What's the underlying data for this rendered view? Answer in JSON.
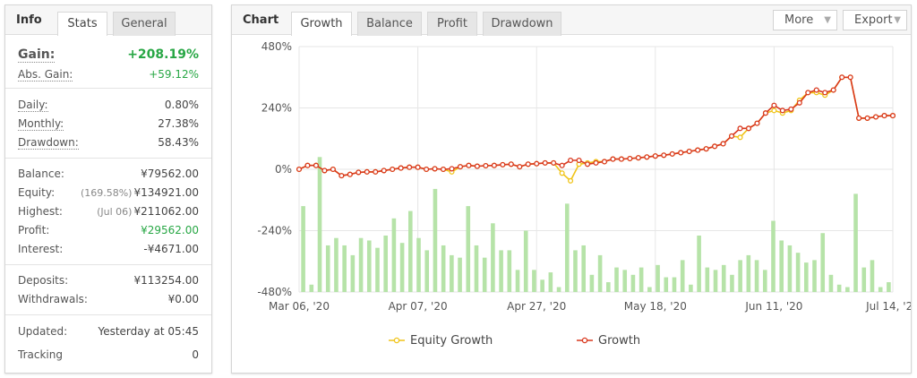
{
  "info": {
    "tabs": [
      {
        "label": "Info"
      },
      {
        "label": "Stats"
      },
      {
        "label": "General"
      }
    ],
    "gain": {
      "label": "Gain:",
      "value": "+208.19%"
    },
    "abs_gain": {
      "label": "Abs. Gain:",
      "value": "+59.12%"
    },
    "daily": {
      "label": "Daily:",
      "value": "0.80%"
    },
    "monthly": {
      "label": "Monthly:",
      "value": "27.38%"
    },
    "drawdown": {
      "label": "Drawdown:",
      "value": "58.43%"
    },
    "balance": {
      "label": "Balance:",
      "value": "¥79562.00"
    },
    "equity": {
      "label": "Equity:",
      "sub": "(169.58%)",
      "value": "¥134921.00"
    },
    "highest": {
      "label": "Highest:",
      "sub": "(Jul 06)",
      "value": "¥211062.00"
    },
    "profit": {
      "label": "Profit:",
      "value": "¥29562.00"
    },
    "interest": {
      "label": "Interest:",
      "value": "-¥4671.00"
    },
    "deposits": {
      "label": "Deposits:",
      "value": "¥113254.00"
    },
    "withdrawals": {
      "label": "Withdrawals:",
      "value": "¥0.00"
    },
    "updated": {
      "label": "Updated:",
      "value": "Yesterday at 05:45"
    },
    "tracking": {
      "label": "Tracking",
      "value": "0"
    }
  },
  "chart_panel": {
    "title": "Chart",
    "tabs": [
      {
        "label": "Growth"
      },
      {
        "label": "Balance"
      },
      {
        "label": "Profit"
      },
      {
        "label": "Drawdown"
      }
    ],
    "more_label": "More",
    "export_label": "Export"
  },
  "chart_data": {
    "type": "line",
    "y_ticks": [
      "480%",
      "240%",
      "0%",
      "-240%",
      "-480%"
    ],
    "x_ticks": [
      "Mar 06, '20",
      "Apr 07, '20",
      "Apr 27, '20",
      "May 18, '20",
      "Jun 11, '20",
      "Jul 14, '20"
    ],
    "ylim": [
      -480,
      480
    ],
    "legend": [
      "Equity Growth",
      "Growth"
    ],
    "colors": {
      "growth": "#d9381e",
      "equity": "#f0c419",
      "bars": "#b6e3a8",
      "grid": "#e6e6e6"
    },
    "growth": [
      0,
      15,
      15,
      -5,
      0,
      -25,
      -20,
      -12,
      -10,
      -10,
      -5,
      0,
      5,
      8,
      8,
      0,
      2,
      0,
      2,
      10,
      15,
      12,
      14,
      15,
      18,
      20,
      10,
      20,
      22,
      25,
      25,
      15,
      35,
      35,
      20,
      25,
      30,
      40,
      40,
      42,
      45,
      48,
      52,
      55,
      60,
      65,
      70,
      75,
      80,
      90,
      100,
      130,
      160,
      160,
      180,
      220,
      250,
      230,
      235,
      260,
      300,
      310,
      300,
      310,
      360,
      360,
      200,
      200,
      205,
      210,
      210
    ],
    "equity": [
      0,
      15,
      15,
      -5,
      0,
      -25,
      -20,
      -12,
      -10,
      -10,
      -5,
      0,
      5,
      8,
      8,
      0,
      2,
      0,
      -10,
      10,
      15,
      12,
      14,
      15,
      18,
      20,
      10,
      20,
      22,
      25,
      25,
      -15,
      -45,
      20,
      25,
      30,
      30,
      40,
      40,
      42,
      45,
      48,
      52,
      55,
      60,
      65,
      70,
      75,
      80,
      90,
      100,
      130,
      125,
      160,
      180,
      220,
      230,
      220,
      230,
      270,
      300,
      300,
      290,
      310,
      360,
      360,
      200,
      200,
      205,
      210,
      210
    ],
    "bars": [
      35,
      3,
      55,
      19,
      22,
      19,
      15,
      22,
      21,
      18,
      23,
      30,
      20,
      33,
      22,
      17,
      42,
      19,
      15,
      14,
      35,
      19,
      14,
      28,
      17,
      17,
      9,
      25,
      9,
      5,
      8,
      2,
      36,
      17,
      19,
      7,
      15,
      4,
      10,
      9,
      7,
      10,
      2,
      11,
      6,
      6,
      13,
      3,
      23,
      10,
      9,
      11,
      7,
      13,
      15,
      13,
      9,
      29,
      21,
      19,
      16,
      12,
      13,
      24,
      7,
      3,
      2,
      40,
      10,
      13,
      2,
      4
    ],
    "growth_index": [
      null,
      0,
      1,
      2,
      3,
      4,
      5,
      6,
      7,
      8,
      9,
      10,
      11,
      12,
      13,
      14,
      15,
      16,
      17,
      18,
      19,
      20,
      21,
      22,
      23,
      24,
      25,
      26,
      27,
      28,
      29,
      30,
      31,
      32,
      33,
      34,
      35,
      36,
      37,
      38,
      39,
      40,
      41,
      42,
      43,
      44,
      45,
      46,
      47,
      48,
      49,
      50,
      51,
      52,
      53,
      54,
      55,
      56,
      57,
      58,
      59,
      60,
      61,
      62,
      63,
      64,
      65,
      66,
      67,
      68,
      69,
      70
    ]
  }
}
